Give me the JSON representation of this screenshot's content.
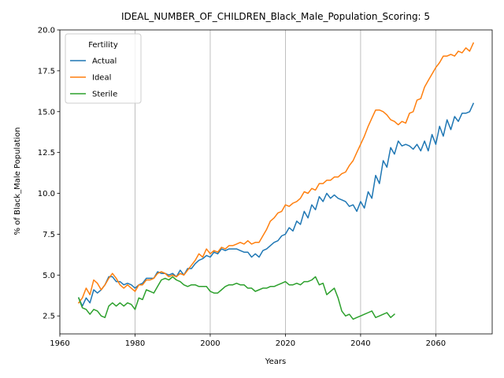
{
  "chart_data": {
    "type": "line",
    "title": "IDEAL_NUMBER_OF_CHILDREN_Black_Male_Population_Scoring: 5",
    "xlabel": "Years",
    "ylabel": "% of Black_Male Population",
    "xlim": [
      1960,
      2075
    ],
    "ylim": [
      1.4,
      20.0
    ],
    "xticks": [
      1960,
      1980,
      2000,
      2020,
      2040,
      2060
    ],
    "yticks": [
      2.5,
      5.0,
      7.5,
      10.0,
      12.5,
      15.0,
      17.5,
      20.0
    ],
    "ytick_labels": [
      "2.5",
      "5.0",
      "7.5",
      "10.0",
      "12.5",
      "15.0",
      "17.5",
      "20.0"
    ],
    "grid": "x-only",
    "legend": {
      "title": "Fertility",
      "placement": "top-left"
    },
    "series": [
      {
        "name": "Actual",
        "color": "#1f77b4",
        "x": [
          1965,
          1966,
          1967,
          1968,
          1969,
          1970,
          1971,
          1972,
          1973,
          1974,
          1975,
          1976,
          1977,
          1978,
          1979,
          1980,
          1981,
          1982,
          1983,
          1984,
          1985,
          1986,
          1987,
          1988,
          1989,
          1990,
          1991,
          1992,
          1993,
          1994,
          1995,
          1996,
          1997,
          1998,
          1999,
          2000,
          2001,
          2002,
          2003,
          2004,
          2005,
          2006,
          2007,
          2008,
          2009,
          2010,
          2011,
          2012,
          2013,
          2014,
          2015,
          2016,
          2017,
          2018,
          2019,
          2020,
          2021,
          2022,
          2023,
          2024,
          2025,
          2026,
          2027,
          2028,
          2029,
          2030,
          2031,
          2032,
          2033,
          2034,
          2035,
          2036,
          2037,
          2038,
          2039,
          2040,
          2041,
          2042,
          2043,
          2044,
          2045,
          2046,
          2047,
          2048,
          2049,
          2050,
          2051,
          2052,
          2053,
          2054,
          2055,
          2056,
          2057,
          2058,
          2059,
          2060,
          2061,
          2062,
          2063,
          2064,
          2065,
          2066,
          2067,
          2068,
          2069,
          2070
        ],
        "values": [
          3.6,
          3.1,
          3.6,
          3.3,
          4.1,
          3.9,
          4.1,
          4.4,
          4.9,
          4.9,
          4.6,
          4.6,
          4.4,
          4.5,
          4.4,
          4.2,
          4.4,
          4.5,
          4.8,
          4.8,
          4.8,
          5.2,
          5.1,
          5.1,
          5.0,
          5.1,
          4.9,
          5.3,
          5.0,
          5.4,
          5.4,
          5.7,
          5.9,
          6.0,
          6.2,
          6.1,
          6.4,
          6.3,
          6.6,
          6.5,
          6.6,
          6.6,
          6.6,
          6.5,
          6.4,
          6.4,
          6.1,
          6.3,
          6.1,
          6.5,
          6.6,
          6.8,
          7.0,
          7.1,
          7.4,
          7.5,
          7.9,
          7.7,
          8.3,
          8.1,
          8.9,
          8.5,
          9.3,
          9.0,
          9.8,
          9.5,
          10.0,
          9.7,
          9.9,
          9.7,
          9.6,
          9.5,
          9.2,
          9.3,
          8.9,
          9.5,
          9.1,
          10.1,
          9.7,
          11.1,
          10.6,
          12.0,
          11.6,
          12.8,
          12.4,
          13.2,
          12.9,
          13.0,
          12.9,
          12.7,
          13.0,
          12.6,
          13.2,
          12.6,
          13.6,
          13.0,
          14.1,
          13.5,
          14.5,
          13.9,
          14.7,
          14.4,
          14.9,
          14.9,
          15.0,
          15.5
        ]
      },
      {
        "name": "Ideal",
        "color": "#ff7f0e",
        "x": [
          1965,
          1966,
          1967,
          1968,
          1969,
          1970,
          1971,
          1972,
          1973,
          1974,
          1975,
          1976,
          1977,
          1978,
          1979,
          1980,
          1981,
          1982,
          1983,
          1984,
          1985,
          1986,
          1987,
          1988,
          1989,
          1990,
          1991,
          1992,
          1993,
          1994,
          1995,
          1996,
          1997,
          1998,
          1999,
          2000,
          2001,
          2002,
          2003,
          2004,
          2005,
          2006,
          2007,
          2008,
          2009,
          2010,
          2011,
          2012,
          2013,
          2014,
          2015,
          2016,
          2017,
          2018,
          2019,
          2020,
          2021,
          2022,
          2023,
          2024,
          2025,
          2026,
          2027,
          2028,
          2029,
          2030,
          2031,
          2032,
          2033,
          2034,
          2035,
          2036,
          2037,
          2038,
          2039,
          2040,
          2041,
          2042,
          2043,
          2044,
          2045,
          2046,
          2047,
          2048,
          2049,
          2050,
          2051,
          2052,
          2053,
          2054,
          2055,
          2056,
          2057,
          2058,
          2059,
          2060,
          2061,
          2062,
          2063,
          2064,
          2065,
          2066,
          2067,
          2068,
          2069,
          2070
        ],
        "values": [
          3.3,
          3.6,
          4.2,
          3.8,
          4.7,
          4.5,
          4.1,
          4.4,
          4.8,
          5.1,
          4.8,
          4.4,
          4.2,
          4.4,
          4.2,
          4.0,
          4.4,
          4.4,
          4.7,
          4.7,
          4.8,
          5.1,
          5.2,
          5.1,
          4.9,
          5.0,
          4.9,
          5.1,
          5.0,
          5.3,
          5.6,
          5.9,
          6.3,
          6.1,
          6.6,
          6.3,
          6.5,
          6.4,
          6.7,
          6.6,
          6.8,
          6.8,
          6.9,
          7.0,
          6.9,
          7.1,
          6.9,
          7.0,
          7.0,
          7.4,
          7.8,
          8.3,
          8.5,
          8.8,
          8.9,
          9.3,
          9.2,
          9.4,
          9.5,
          9.7,
          10.1,
          10.0,
          10.3,
          10.2,
          10.6,
          10.6,
          10.8,
          10.8,
          11.0,
          11.0,
          11.2,
          11.3,
          11.7,
          12.0,
          12.5,
          13.0,
          13.5,
          14.1,
          14.6,
          15.1,
          15.1,
          15.0,
          14.8,
          14.5,
          14.4,
          14.2,
          14.4,
          14.3,
          14.9,
          15.0,
          15.7,
          15.8,
          16.5,
          16.9,
          17.3,
          17.7,
          18.0,
          18.4,
          18.4,
          18.5,
          18.4,
          18.7,
          18.6,
          18.9,
          18.7,
          19.2
        ]
      },
      {
        "name": "Sterile",
        "color": "#2ca02c",
        "x": [
          1965,
          1966,
          1967,
          1968,
          1969,
          1970,
          1971,
          1972,
          1973,
          1974,
          1975,
          1976,
          1977,
          1978,
          1979,
          1980,
          1981,
          1982,
          1983,
          1984,
          1985,
          1986,
          1987,
          1988,
          1989,
          1990,
          1991,
          1992,
          1993,
          1994,
          1995,
          1996,
          1997,
          1998,
          1999,
          2000,
          2001,
          2002,
          2003,
          2004,
          2005,
          2006,
          2007,
          2008,
          2009,
          2010,
          2011,
          2012,
          2013,
          2014,
          2015,
          2016,
          2017,
          2018,
          2019,
          2020,
          2021,
          2022,
          2023,
          2024,
          2025,
          2026,
          2027,
          2028,
          2029,
          2030,
          2031,
          2032,
          2033,
          2034,
          2035,
          2036,
          2037,
          2038,
          2039,
          2040,
          2041,
          2042,
          2043,
          2044,
          2045,
          2046,
          2047,
          2048,
          2049
        ],
        "values": [
          3.6,
          3.0,
          2.9,
          2.6,
          2.9,
          2.8,
          2.5,
          2.4,
          3.1,
          3.3,
          3.1,
          3.3,
          3.1,
          3.3,
          3.2,
          2.9,
          3.6,
          3.5,
          4.1,
          4.0,
          3.9,
          4.3,
          4.7,
          4.8,
          4.7,
          4.9,
          4.7,
          4.6,
          4.4,
          4.3,
          4.4,
          4.4,
          4.3,
          4.3,
          4.3,
          4.0,
          3.9,
          3.9,
          4.1,
          4.3,
          4.4,
          4.4,
          4.5,
          4.4,
          4.4,
          4.2,
          4.2,
          4.0,
          4.1,
          4.2,
          4.2,
          4.3,
          4.3,
          4.4,
          4.5,
          4.6,
          4.4,
          4.4,
          4.5,
          4.4,
          4.6,
          4.6,
          4.7,
          4.9,
          4.4,
          4.5,
          3.8,
          4.0,
          4.2,
          3.6,
          2.8,
          2.5,
          2.6,
          2.3,
          2.4,
          2.5,
          2.6,
          2.7,
          2.8,
          2.4,
          2.5,
          2.6,
          2.7,
          2.4,
          2.6
        ]
      }
    ]
  }
}
